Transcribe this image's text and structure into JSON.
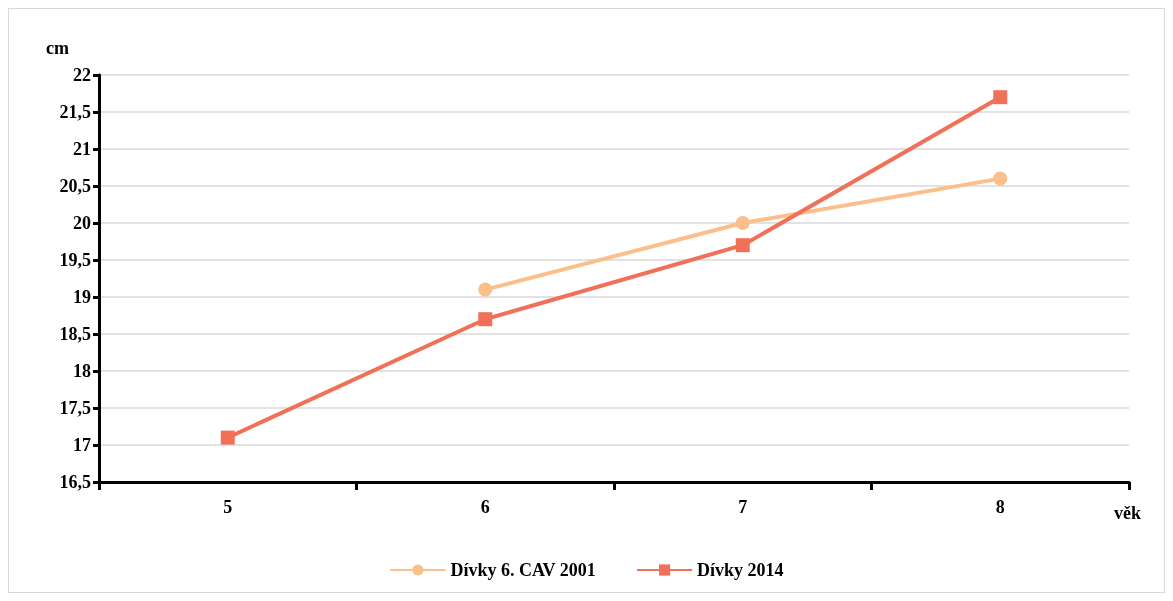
{
  "chart_data": {
    "type": "line",
    "xlabel": "věk",
    "ylabel": "cm",
    "categories": [
      "5",
      "6",
      "7",
      "8"
    ],
    "ylim": [
      16.5,
      22
    ],
    "yticks": [
      {
        "value": 16.5,
        "label": "16,5"
      },
      17,
      {
        "value": 17.5,
        "label": "17,5"
      },
      18,
      {
        "value": 18.5,
        "label": "18,5"
      },
      19,
      {
        "value": 19.5,
        "label": "19,5"
      },
      20,
      {
        "value": 20.5,
        "label": "20,5"
      },
      21,
      {
        "value": 21.5,
        "label": "21,5"
      },
      22
    ],
    "grid": "y",
    "legend": "bottom",
    "line_style": "solid",
    "series": [
      {
        "name": "Dívky 6. CAV 2001",
        "color": "#fbbf8c",
        "marker": "circle",
        "values": [
          null,
          19.1,
          20.0,
          20.6
        ]
      },
      {
        "name": "Dívky 2014",
        "color": "#f07058",
        "marker": "square",
        "values": [
          17.1,
          18.7,
          19.7,
          21.7
        ]
      }
    ]
  }
}
